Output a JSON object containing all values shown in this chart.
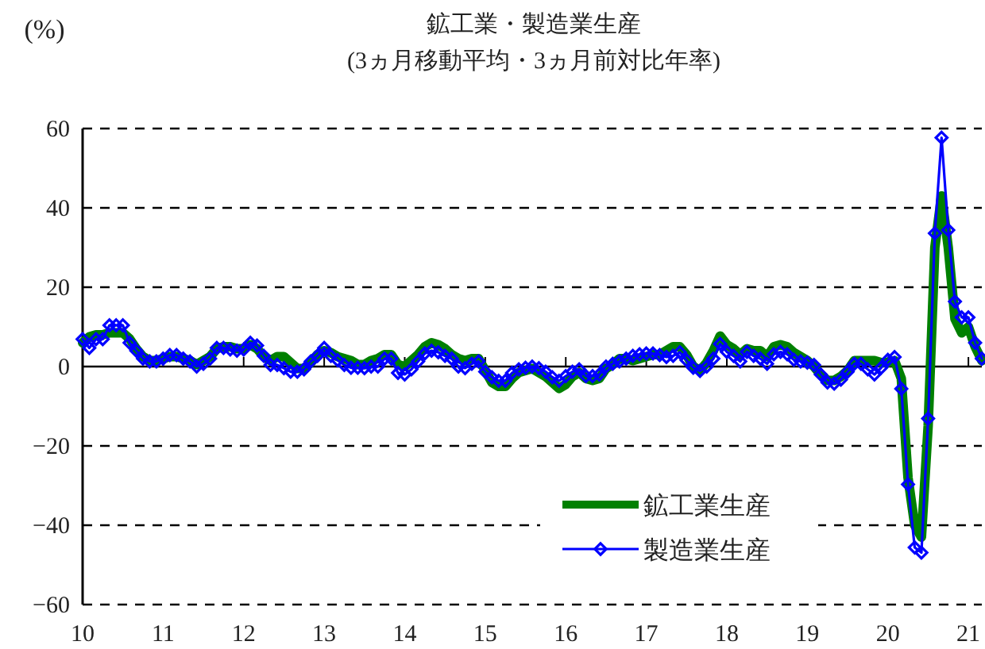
{
  "chart_data": {
    "type": "line",
    "title": "鉱工業・製造業生産",
    "subtitle": "(3ヵ月移動平均・3ヵ月前対比年率)",
    "ylabel": "(%)",
    "x": [
      "2010-01",
      "2010-02",
      "2010-03",
      "2010-04",
      "2010-05",
      "2010-06",
      "2010-07",
      "2010-08",
      "2010-09",
      "2010-10",
      "2010-11",
      "2010-12",
      "2011-01",
      "2011-02",
      "2011-03",
      "2011-04",
      "2011-05",
      "2011-06",
      "2011-07",
      "2011-08",
      "2011-09",
      "2011-10",
      "2011-11",
      "2011-12",
      "2012-01",
      "2012-02",
      "2012-03",
      "2012-04",
      "2012-05",
      "2012-06",
      "2012-07",
      "2012-08",
      "2012-09",
      "2012-10",
      "2012-11",
      "2012-12",
      "2013-01",
      "2013-02",
      "2013-03",
      "2013-04",
      "2013-05",
      "2013-06",
      "2013-07",
      "2013-08",
      "2013-09",
      "2013-10",
      "2013-11",
      "2013-12",
      "2014-01",
      "2014-02",
      "2014-03",
      "2014-04",
      "2014-05",
      "2014-06",
      "2014-07",
      "2014-08",
      "2014-09",
      "2014-10",
      "2014-11",
      "2014-12",
      "2015-01",
      "2015-02",
      "2015-03",
      "2015-04",
      "2015-05",
      "2015-06",
      "2015-07",
      "2015-08",
      "2015-09",
      "2015-10",
      "2015-11",
      "2015-12",
      "2016-01",
      "2016-02",
      "2016-03",
      "2016-04",
      "2016-05",
      "2016-06",
      "2016-07",
      "2016-08",
      "2016-09",
      "2016-10",
      "2016-11",
      "2016-12",
      "2017-01",
      "2017-02",
      "2017-03",
      "2017-04",
      "2017-05",
      "2017-06",
      "2017-07",
      "2017-08",
      "2017-09",
      "2017-10",
      "2017-11",
      "2017-12",
      "2018-01",
      "2018-02",
      "2018-03",
      "2018-04",
      "2018-05",
      "2018-06",
      "2018-07",
      "2018-08",
      "2018-09",
      "2018-10",
      "2018-11",
      "2018-12",
      "2019-01",
      "2019-02",
      "2019-03",
      "2019-04",
      "2019-05",
      "2019-06",
      "2019-07",
      "2019-08",
      "2019-09",
      "2019-10",
      "2019-11",
      "2019-12",
      "2020-01",
      "2020-02",
      "2020-03",
      "2020-04",
      "2020-05",
      "2020-06",
      "2020-07",
      "2020-08",
      "2020-09",
      "2020-10",
      "2020-11",
      "2020-12",
      "2021-01",
      "2021-02",
      "2021-03"
    ],
    "series": [
      {
        "name": "鉱工業生産",
        "color": "#008000",
        "marker": "none",
        "values": [
          6,
          7.5,
          8,
          8,
          8.5,
          8.5,
          8.5,
          7,
          4.5,
          2.5,
          1.5,
          1.5,
          2,
          2.5,
          2.5,
          2,
          1.5,
          0.5,
          1.5,
          2.5,
          4.5,
          5,
          5,
          4.5,
          4.5,
          5.5,
          4.5,
          2.5,
          1.5,
          2.5,
          2.5,
          1,
          -0.5,
          -0.5,
          1,
          3,
          4,
          3.5,
          2.5,
          2,
          1.5,
          0.5,
          0.5,
          1.5,
          2,
          3,
          3,
          0.5,
          0,
          1.5,
          3,
          5,
          6,
          5.5,
          4.5,
          3,
          2,
          1.5,
          2,
          2,
          -1,
          -4,
          -5,
          -5,
          -3,
          -1.5,
          -1,
          -0.5,
          -1.5,
          -2.5,
          -4,
          -5.5,
          -4.5,
          -2.5,
          -1.5,
          -3,
          -3.5,
          -3,
          -0.5,
          0.5,
          2,
          2,
          1.5,
          2,
          2.5,
          3,
          3,
          4,
          5,
          5,
          3,
          0,
          -1,
          1,
          4,
          7.7,
          5.5,
          4.5,
          3,
          4.5,
          4,
          4,
          2.5,
          5,
          5.5,
          5,
          3.5,
          2.5,
          1.5,
          0,
          -2,
          -3.5,
          -3.5,
          -2.5,
          -1,
          1.5,
          1.5,
          1.5,
          1.5,
          1,
          1,
          1.5,
          -3,
          -28,
          -40,
          -43,
          -15,
          30,
          43,
          30,
          12,
          8.5,
          10,
          5,
          1.5
        ]
      },
      {
        "name": "製造業生産",
        "color": "#0000ff",
        "marker": "diamond",
        "values": [
          6.9,
          4.7,
          6.9,
          6.9,
          10.4,
          10.4,
          10.4,
          6,
          4,
          2,
          1.3,
          1.3,
          2,
          2.9,
          2.9,
          2,
          1.3,
          0,
          0.7,
          2,
          4.7,
          4.7,
          4.3,
          4,
          4.3,
          6,
          5.3,
          2.7,
          0.4,
          0.4,
          -0.4,
          -1.3,
          -1.3,
          -0.7,
          1.3,
          2.7,
          4.7,
          2.7,
          1.6,
          0.4,
          -0.3,
          -0.3,
          -0.4,
          0,
          0,
          2,
          2,
          -1.6,
          -2,
          -0.7,
          1.3,
          3.3,
          4,
          3.6,
          2.7,
          2,
          0,
          -0.4,
          0.7,
          1.3,
          -1.3,
          -2.7,
          -3.6,
          -3.6,
          -1.6,
          -0.7,
          -0.3,
          0,
          -0.4,
          -1.3,
          -2.7,
          -3.6,
          -2.4,
          -1.3,
          -0.7,
          -2.4,
          -2.4,
          -2,
          0,
          0.7,
          1.3,
          2,
          2.7,
          3.1,
          3.3,
          3.3,
          2.9,
          2.4,
          2.7,
          3.6,
          1.6,
          -0.3,
          -1.1,
          0,
          2,
          5.7,
          3.7,
          2.7,
          1.3,
          3.7,
          2.7,
          2,
          0.7,
          3.1,
          3.7,
          3.1,
          1.7,
          1.3,
          1,
          0.4,
          -2,
          -4,
          -4.3,
          -3.3,
          -1.3,
          0.7,
          0.7,
          -0.7,
          -2,
          -0.3,
          1.7,
          2.4,
          -5.6,
          -29.7,
          -45.6,
          -46.9,
          -13.1,
          33.6,
          57.7,
          34.4,
          16.4,
          12.4,
          12.4,
          6,
          2
        ]
      }
    ],
    "xlim": [
      "2010-01",
      "2021-03"
    ],
    "xticks": [
      {
        "value": "2010-01",
        "label": "10"
      },
      {
        "value": "2011-01",
        "label": "11"
      },
      {
        "value": "2012-01",
        "label": "12"
      },
      {
        "value": "2013-01",
        "label": "13"
      },
      {
        "value": "2014-01",
        "label": "14"
      },
      {
        "value": "2015-01",
        "label": "15"
      },
      {
        "value": "2016-01",
        "label": "16"
      },
      {
        "value": "2017-01",
        "label": "17"
      },
      {
        "value": "2018-01",
        "label": "18"
      },
      {
        "value": "2019-01",
        "label": "19"
      },
      {
        "value": "2020-01",
        "label": "20"
      },
      {
        "value": "2021-01",
        "label": "21"
      }
    ],
    "ylim": [
      -60,
      60
    ],
    "yticks": [
      -60,
      -40,
      -20,
      0,
      20,
      40,
      60
    ],
    "grid": "y",
    "legend": "bottom"
  }
}
